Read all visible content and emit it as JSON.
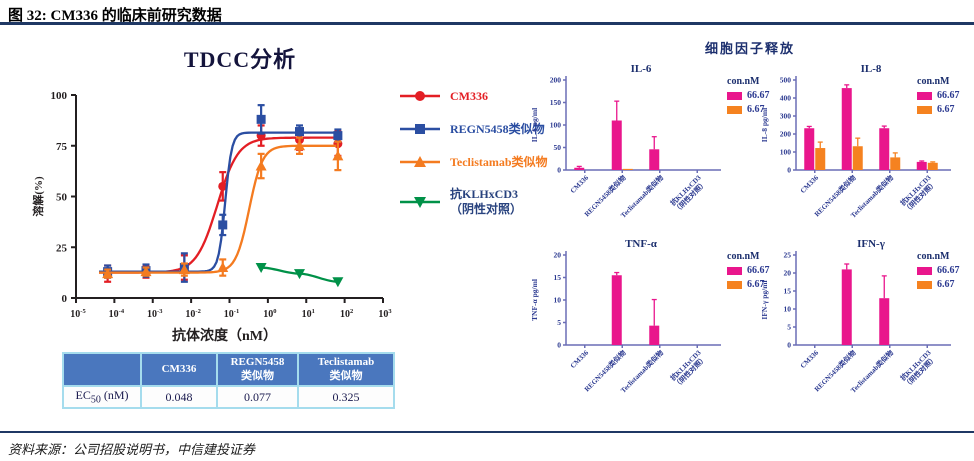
{
  "figure": {
    "title": "图 32: CM336 的临床前研究数据",
    "source": "资料来源：公司招股说明书，中信建投证券"
  },
  "colors": {
    "red": "#e31e24",
    "blue": "#2b4ea2",
    "orange": "#f47b20",
    "green": "#009148",
    "magenta": "#e9168c",
    "orange_bar": "#f58220",
    "navy": "#2b3990",
    "bar_axis": "#6a6db5",
    "dose_axis": "#231f20",
    "rule": "#1f3864",
    "table_header": "#4a77be",
    "table_border": "#a5dced"
  },
  "tdcc": {
    "title": "TDCC分析",
    "xlabel": "抗体浓度（nM）",
    "ylabel": "溶解(%)",
    "legend": [
      {
        "label": "CM336",
        "marker": "circle",
        "color": "#e31e24",
        "text_color": "#e31e24"
      },
      {
        "label": "REGN5458类似物",
        "marker": "square",
        "color": "#2b4ea2",
        "text_color": "#2b4ea2"
      },
      {
        "label": "Teclistamab类似物",
        "marker": "triangle-up",
        "color": "#f47b20",
        "text_color": "#f47b20"
      },
      {
        "label": "抗KLHxCD3\n（阴性对照）",
        "marker": "triangle-down",
        "color": "#009148",
        "text_color": "#28427e"
      }
    ],
    "table": {
      "headers": [
        "",
        "CM336",
        "REGN5458\n类似物",
        "Teclistamab\n类似物"
      ],
      "row_label": {
        "prefix": "EC",
        "sub": "50",
        "suffix": " (nM)"
      },
      "values": [
        "0.048",
        "0.077",
        "0.325"
      ]
    }
  },
  "cytokine": {
    "title": "细胞因子释放",
    "legend": {
      "title": "con.nM",
      "entries": [
        {
          "label": "66.67",
          "color": "#e9168c"
        },
        {
          "label": "6.67",
          "color": "#f58220"
        }
      ]
    }
  },
  "chart_data": [
    {
      "id": "tdcc",
      "type": "line",
      "title": "TDCC分析",
      "xlabel": "抗体浓度（nM）",
      "ylabel": "溶解(%)",
      "x_scale": "log",
      "x_tick_exponents": [
        -5,
        -4,
        -3,
        -2,
        -1,
        0,
        1,
        2,
        3
      ],
      "ylim": [
        0,
        100
      ],
      "y_ticks": [
        0,
        25,
        50,
        75,
        100
      ],
      "series": [
        {
          "name": "CM336",
          "color": "#e31e24",
          "marker": "circle",
          "ec50": 0.048,
          "hill": 1.6,
          "base": 12.5,
          "top": 79,
          "x": [
            6.67e-05,
            0.000667,
            0.00667,
            0.0667,
            0.667,
            6.67,
            66.7
          ],
          "y": [
            12,
            13,
            15,
            55,
            80,
            78,
            76
          ],
          "yerr": [
            4,
            3,
            6,
            7,
            5,
            5,
            6
          ]
        },
        {
          "name": "REGN5458类似物",
          "color": "#2b4ea2",
          "marker": "square",
          "ec50": 0.077,
          "hill": 5,
          "base": 13,
          "top": 81.5,
          "x": [
            6.67e-05,
            0.000667,
            0.00667,
            0.0667,
            0.667,
            6.67,
            66.7
          ],
          "y": [
            13,
            13.5,
            15,
            36,
            88,
            82,
            80
          ],
          "yerr": [
            3,
            3,
            7,
            5,
            7,
            3,
            3
          ]
        },
        {
          "name": "Teclistamab类似物",
          "color": "#f47b20",
          "marker": "triangle-up",
          "ec50": 0.325,
          "hill": 2.5,
          "base": 12.5,
          "top": 75,
          "x": [
            6.67e-05,
            0.000667,
            0.00667,
            0.0667,
            0.667,
            6.67,
            66.7
          ],
          "y": [
            12,
            13,
            14,
            15,
            65,
            75,
            70
          ],
          "yerr": [
            2,
            2,
            3,
            4,
            6,
            4,
            7
          ]
        },
        {
          "name": "抗KLHxCD3（阴性对照）",
          "color": "#009148",
          "marker": "triangle-down",
          "x": [
            0.667,
            6.67,
            66.7
          ],
          "y": [
            15,
            12,
            8
          ],
          "yerr": [
            0,
            0,
            0
          ]
        }
      ],
      "ec50_values": {
        "CM336": 0.048,
        "REGN5458类似物": 0.077,
        "Teclistamab类似物": 0.325
      }
    },
    {
      "id": "il6",
      "type": "bar",
      "title": "IL-6",
      "ylabel": "IL-6 pg/ml",
      "ylim": [
        0,
        200
      ],
      "y_step": 50,
      "categories": [
        "CM336",
        "REGN5458类似物",
        "Teclistamab类似物",
        "抗KLHxCD3\n（阴性对照）"
      ],
      "series": [
        {
          "name": "66.67",
          "color": "#e9168c",
          "values": [
            5,
            110,
            46,
            0
          ],
          "errors": [
            3,
            43,
            28,
            0
          ]
        },
        {
          "name": "6.67",
          "color": "#f58220",
          "values": [
            0,
            2.5,
            0,
            0
          ],
          "errors": [
            0,
            0,
            0,
            0
          ]
        }
      ]
    },
    {
      "id": "il8",
      "type": "bar",
      "title": "IL-8",
      "ylabel": "IL-8 pg/ml",
      "ylim": [
        0,
        500
      ],
      "y_step": 100,
      "categories": [
        "CM336",
        "REGN5458类似物",
        "Teclistamab类似物",
        "抗KLHxCD3\n（阴性对照）"
      ],
      "series": [
        {
          "name": "66.67",
          "color": "#e9168c",
          "values": [
            232,
            455,
            232,
            45
          ],
          "errors": [
            10,
            18,
            12,
            5
          ]
        },
        {
          "name": "6.67",
          "color": "#f58220",
          "values": [
            122,
            132,
            70,
            40
          ],
          "errors": [
            33,
            45,
            25,
            5
          ]
        }
      ]
    },
    {
      "id": "tnf",
      "type": "bar",
      "title": "TNF-α",
      "ylabel": "TNF-α pg/ml",
      "ylim": [
        0,
        20
      ],
      "y_step": 5,
      "categories": [
        "CM336",
        "REGN5458类似物",
        "Teclistamab类似物",
        "抗KLHxCD3\n（阴性对照）"
      ],
      "series": [
        {
          "name": "66.67",
          "color": "#e9168c",
          "values": [
            0,
            15.5,
            4.3,
            0
          ],
          "errors": [
            0,
            0.6,
            5.8,
            0
          ]
        },
        {
          "name": "6.67",
          "color": "#f58220",
          "values": [
            0,
            0,
            0,
            0
          ],
          "errors": [
            0,
            0,
            0,
            0
          ]
        }
      ]
    },
    {
      "id": "ifn",
      "type": "bar",
      "title": "IFN-γ",
      "ylabel": "IFN-γ pg/ml",
      "ylim": [
        0,
        25
      ],
      "y_step": 5,
      "categories": [
        "CM336",
        "REGN5458类似物",
        "Teclistamab类似物",
        "抗KLHxCD3\n（阴性对照）"
      ],
      "series": [
        {
          "name": "66.67",
          "color": "#e9168c",
          "values": [
            0,
            21,
            13,
            0
          ],
          "errors": [
            0,
            1.5,
            6.2,
            0
          ]
        },
        {
          "name": "6.67",
          "color": "#f58220",
          "values": [
            0,
            0,
            0,
            0
          ],
          "errors": [
            0,
            0,
            0,
            0
          ]
        }
      ]
    }
  ]
}
